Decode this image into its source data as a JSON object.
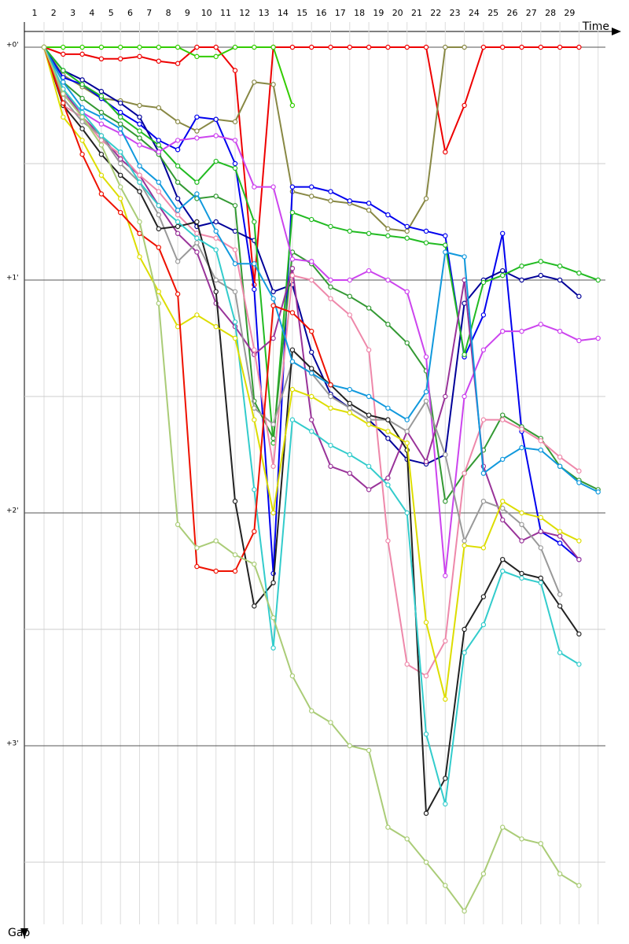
{
  "chart_data": {
    "type": "line",
    "x_label": "Time",
    "y_label": "Gap",
    "categories": [
      "1",
      "2",
      "3",
      "4",
      "5",
      "6",
      "7",
      "8",
      "9",
      "10",
      "11",
      "12",
      "13",
      "14",
      "15",
      "16",
      "17",
      "18",
      "19",
      "20",
      "21",
      "22",
      "23",
      "24",
      "25",
      "26",
      "27",
      "28",
      "29",
      null
    ],
    "ylim": [
      -0.1,
      3.78
    ],
    "yticks": [
      {
        "value": 0,
        "label": "+0'"
      },
      {
        "value": 1,
        "label": "+1'"
      },
      {
        "value": 2,
        "label": "+2'"
      },
      {
        "value": 3,
        "label": "+3'"
      }
    ],
    "minor_yticks": [
      0.5,
      1.5,
      2.5,
      3.5
    ],
    "grid": true,
    "series": [
      {
        "color": "#ee0000",
        "values": [
          0,
          0.03,
          0.03,
          0.05,
          0.05,
          0.04,
          0.06,
          0.07,
          0,
          0,
          0.1,
          1.02,
          0,
          0,
          0,
          0,
          0,
          0,
          0,
          0,
          0,
          0.45,
          0.25,
          0,
          0,
          0,
          0,
          0,
          0,
          null
        ]
      },
      {
        "color": "#33cc00",
        "values": [
          0,
          0,
          0,
          0,
          0,
          0,
          0,
          0,
          0.04,
          0.04,
          0,
          0,
          0,
          0.25,
          null,
          null,
          null,
          null,
          null,
          null,
          null,
          null,
          null,
          null,
          null,
          null,
          null,
          null,
          null,
          null
        ]
      },
      {
        "color": "#888844",
        "values": [
          0,
          0.12,
          0.17,
          0.22,
          0.23,
          0.25,
          0.26,
          0.32,
          0.36,
          0.31,
          0.32,
          0.15,
          0.16,
          0.62,
          0.64,
          0.66,
          0.67,
          0.7,
          0.78,
          0.79,
          0.65,
          0,
          0,
          null,
          null,
          null,
          null,
          null,
          null,
          null
        ]
      },
      {
        "color": "#0000ee",
        "values": [
          0,
          0.13,
          0.16,
          0.22,
          0.28,
          0.33,
          0.4,
          0.44,
          0.3,
          0.31,
          0.5,
          1.04,
          2.26,
          0.6,
          0.6,
          0.62,
          0.66,
          0.67,
          0.72,
          0.77,
          0.79,
          0.81,
          1.33,
          1.15,
          0.8,
          1.65,
          2.08,
          2.13,
          2.2,
          null
        ]
      },
      {
        "color": "#000099",
        "values": [
          0,
          0.1,
          0.14,
          0.19,
          0.24,
          0.3,
          0.45,
          0.65,
          0.77,
          0.75,
          0.79,
          0.83,
          1.05,
          1.02,
          1.31,
          1.49,
          1.55,
          1.6,
          1.68,
          1.77,
          1.79,
          1.75,
          1.1,
          1.0,
          0.96,
          1.0,
          0.98,
          1.0,
          1.07,
          null
        ]
      },
      {
        "color": "#22bb22",
        "values": [
          0,
          0.1,
          0.16,
          0.21,
          0.3,
          0.36,
          0.42,
          0.51,
          0.58,
          0.49,
          0.52,
          0.75,
          1.7,
          0.71,
          0.74,
          0.77,
          0.79,
          0.8,
          0.81,
          0.82,
          0.84,
          0.85,
          1.32,
          1.01,
          0.98,
          0.94,
          0.92,
          0.94,
          0.97,
          1.0
        ]
      },
      {
        "color": "#339933",
        "values": [
          0,
          0.15,
          0.22,
          0.28,
          0.33,
          0.39,
          0.46,
          0.58,
          0.65,
          0.64,
          0.68,
          1.52,
          1.68,
          0.88,
          0.93,
          1.03,
          1.07,
          1.12,
          1.19,
          1.27,
          1.39,
          1.95,
          1.83,
          1.73,
          1.58,
          1.63,
          1.68,
          1.8,
          1.86,
          1.9
        ]
      },
      {
        "color": "#cc44ee",
        "values": [
          0,
          0.2,
          0.28,
          0.33,
          0.37,
          0.42,
          0.45,
          0.4,
          0.39,
          0.38,
          0.4,
          0.6,
          0.6,
          0.91,
          0.92,
          1.0,
          1.0,
          0.96,
          1.0,
          1.05,
          1.33,
          2.27,
          1.5,
          1.3,
          1.22,
          1.22,
          1.19,
          1.22,
          1.26,
          1.25
        ]
      },
      {
        "color": "#993399",
        "values": [
          0,
          0.18,
          0.3,
          0.38,
          0.48,
          0.55,
          0.68,
          0.8,
          0.88,
          1.1,
          1.2,
          1.32,
          1.25,
          0.95,
          1.6,
          1.8,
          1.83,
          1.9,
          1.85,
          1.65,
          1.78,
          1.5,
          1.0,
          1.8,
          2.03,
          2.12,
          2.08,
          2.1,
          2.2,
          null
        ]
      },
      {
        "color": "#ee88aa",
        "values": [
          0,
          0.25,
          0.3,
          0.4,
          0.46,
          0.55,
          0.62,
          0.72,
          0.8,
          0.82,
          0.87,
          1.3,
          1.8,
          0.98,
          1.0,
          1.08,
          1.15,
          1.3,
          2.12,
          2.65,
          2.7,
          2.55,
          1.83,
          1.6,
          1.6,
          1.64,
          1.69,
          1.76,
          1.82,
          null
        ]
      },
      {
        "color": "#999999",
        "values": [
          0,
          0.22,
          0.32,
          0.38,
          0.5,
          0.58,
          0.72,
          0.92,
          0.84,
          1.0,
          1.05,
          1.55,
          1.62,
          1.35,
          1.4,
          1.5,
          1.55,
          1.6,
          1.6,
          1.65,
          1.52,
          1.75,
          2.12,
          1.95,
          1.98,
          2.05,
          2.15,
          2.35,
          null,
          null
        ]
      },
      {
        "color": "#222222",
        "values": [
          0,
          0.25,
          0.35,
          0.46,
          0.55,
          0.62,
          0.78,
          0.77,
          0.75,
          1.05,
          1.95,
          2.4,
          2.3,
          1.3,
          1.38,
          1.45,
          1.53,
          1.58,
          1.6,
          1.73,
          3.29,
          3.14,
          2.5,
          2.36,
          2.2,
          2.26,
          2.28,
          2.4,
          2.52,
          null
        ]
      },
      {
        "color": "#33cccc",
        "values": [
          0,
          0.18,
          0.28,
          0.38,
          0.45,
          0.58,
          0.68,
          0.75,
          0.82,
          0.87,
          1.18,
          1.9,
          2.58,
          1.6,
          1.65,
          1.71,
          1.75,
          1.8,
          1.88,
          2.0,
          2.95,
          3.25,
          2.6,
          2.48,
          2.25,
          2.28,
          2.3,
          2.6,
          2.65,
          null
        ]
      },
      {
        "color": "#1199dd",
        "values": [
          0,
          0.15,
          0.26,
          0.3,
          0.35,
          0.51,
          0.58,
          0.7,
          0.63,
          0.79,
          0.93,
          0.93,
          1.08,
          1.35,
          1.4,
          1.45,
          1.47,
          1.5,
          1.55,
          1.6,
          1.48,
          0.88,
          0.9,
          1.83,
          1.77,
          1.72,
          1.73,
          1.8,
          1.87,
          1.91
        ]
      },
      {
        "color": "#dddd00",
        "values": [
          0,
          0.3,
          0.4,
          0.55,
          0.65,
          0.9,
          1.05,
          1.2,
          1.15,
          1.2,
          1.25,
          1.6,
          2.0,
          1.47,
          1.5,
          1.55,
          1.57,
          1.62,
          1.65,
          1.7,
          2.47,
          2.8,
          2.14,
          2.15,
          1.95,
          2.0,
          2.02,
          2.08,
          2.12,
          null
        ]
      },
      {
        "color": "#ee1100",
        "values": [
          0,
          0.24,
          0.46,
          0.63,
          0.71,
          0.8,
          0.86,
          1.06,
          2.23,
          2.25,
          2.25,
          2.08,
          1.11,
          1.14,
          1.22,
          1.45,
          null,
          null,
          null,
          null,
          null,
          null,
          null,
          null,
          null,
          null,
          null,
          null,
          null,
          null
        ]
      },
      {
        "color": "#aacc77",
        "values": [
          0,
          0.2,
          0.3,
          0.42,
          0.6,
          0.75,
          1.1,
          2.05,
          2.15,
          2.12,
          2.18,
          2.22,
          2.45,
          2.7,
          2.85,
          2.9,
          3.0,
          3.02,
          3.35,
          3.4,
          3.5,
          3.6,
          3.71,
          3.55,
          3.35,
          3.4,
          3.42,
          3.55,
          3.6,
          null
        ]
      }
    ]
  }
}
